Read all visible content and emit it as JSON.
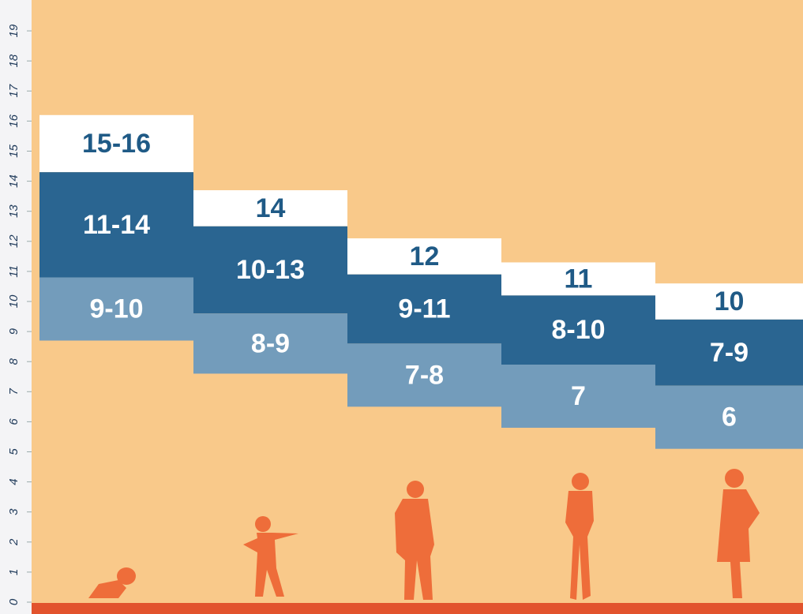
{
  "chart_data": {
    "type": "range-bar",
    "ylim": [
      0,
      19.8
    ],
    "yticks": [
      0,
      1,
      2,
      3,
      4,
      5,
      6,
      7,
      8,
      9,
      10,
      11,
      12,
      13,
      14,
      15,
      16,
      17,
      18,
      19
    ],
    "columns": [
      {
        "bands": [
          {
            "label": "15-16",
            "from": 14.3,
            "to": 16.2,
            "color": "#ffffff",
            "text_color": "#1f5a86"
          },
          {
            "label": "11-14",
            "from": 10.8,
            "to": 14.3,
            "color": "#2a6591",
            "text_color": "#ffffff"
          },
          {
            "label": "9-10",
            "from": 8.7,
            "to": 10.8,
            "color": "#739cbb",
            "text_color": "#ffffff"
          }
        ]
      },
      {
        "bands": [
          {
            "label": "14",
            "from": 12.5,
            "to": 13.7,
            "color": "#ffffff",
            "text_color": "#1f5a86"
          },
          {
            "label": "10-13",
            "from": 9.6,
            "to": 12.5,
            "color": "#2a6591",
            "text_color": "#ffffff"
          },
          {
            "label": "8-9",
            "from": 7.6,
            "to": 9.6,
            "color": "#739cbb",
            "text_color": "#ffffff"
          }
        ]
      },
      {
        "bands": [
          {
            "label": "12",
            "from": 10.9,
            "to": 12.1,
            "color": "#ffffff",
            "text_color": "#1f5a86"
          },
          {
            "label": "9-11",
            "from": 8.6,
            "to": 10.9,
            "color": "#2a6591",
            "text_color": "#ffffff"
          },
          {
            "label": "7-8",
            "from": 6.5,
            "to": 8.6,
            "color": "#739cbb",
            "text_color": "#ffffff"
          }
        ]
      },
      {
        "bands": [
          {
            "label": "11",
            "from": 10.2,
            "to": 11.3,
            "color": "#ffffff",
            "text_color": "#1f5a86"
          },
          {
            "label": "8-10",
            "from": 7.9,
            "to": 10.2,
            "color": "#2a6591",
            "text_color": "#ffffff"
          },
          {
            "label": "7",
            "from": 5.8,
            "to": 7.9,
            "color": "#739cbb",
            "text_color": "#ffffff"
          }
        ]
      },
      {
        "bands": [
          {
            "label": "10",
            "from": 9.4,
            "to": 10.6,
            "color": "#ffffff",
            "text_color": "#1f5a86"
          },
          {
            "label": "7-9",
            "from": 7.2,
            "to": 9.4,
            "color": "#2a6591",
            "text_color": "#ffffff"
          },
          {
            "label": "6",
            "from": 5.1,
            "to": 7.2,
            "color": "#739cbb",
            "text_color": "#ffffff"
          }
        ]
      }
    ]
  }
}
